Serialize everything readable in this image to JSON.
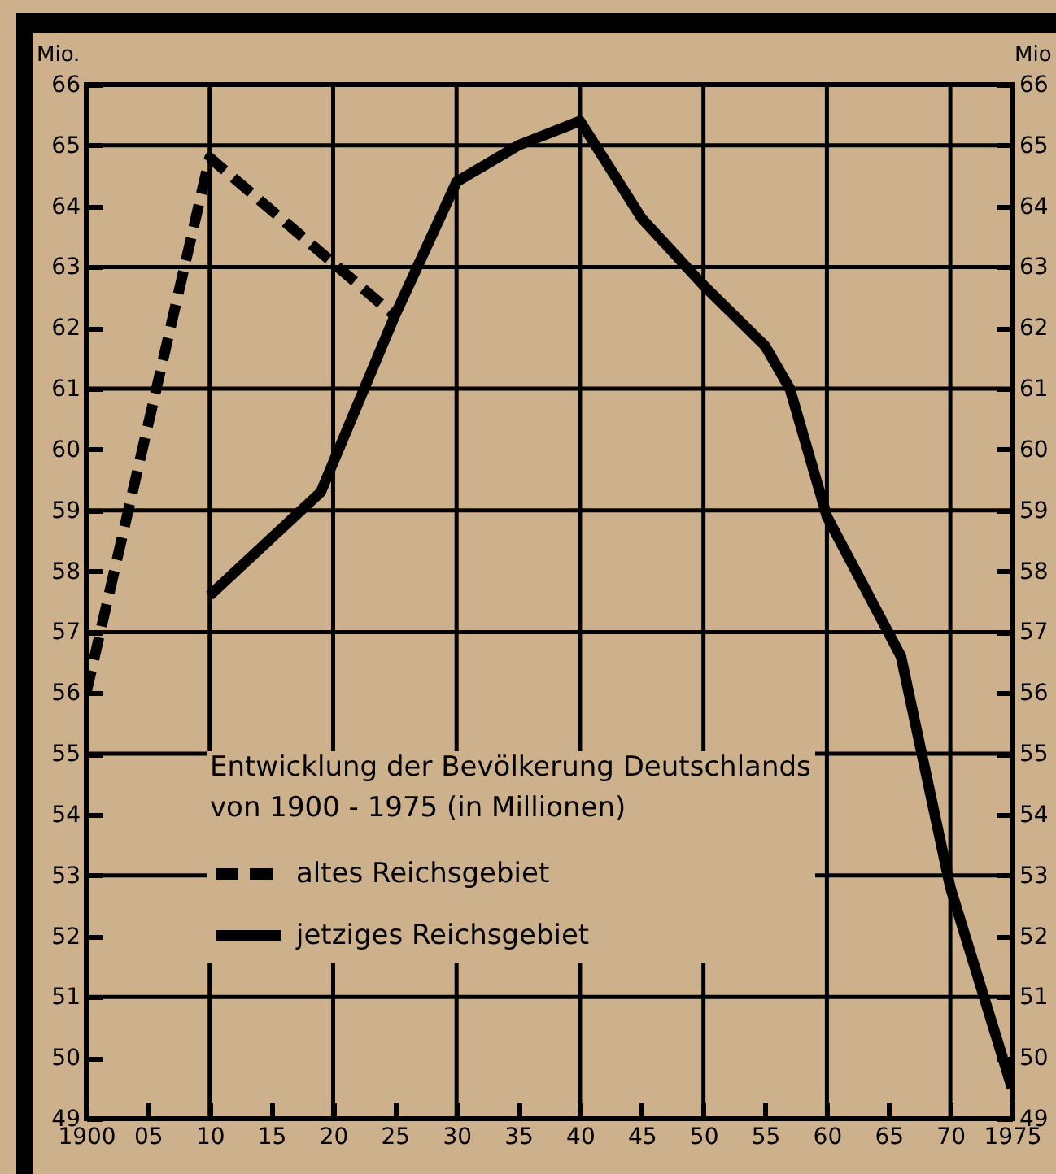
{
  "chart_data": {
    "type": "line",
    "title": "Entwicklung der Bevölkerung Deutschlands",
    "subtitle": "von 1900 - 1975 (in Millionen)",
    "ylabel": "Mio.",
    "y2label": "Mio",
    "series": [
      {
        "name": "altes Reichsgebiet",
        "color": "#000000",
        "line_style": "dashed",
        "x": [
          1900,
          1910,
          1925
        ],
        "values": [
          56.0,
          64.8,
          62.2
        ]
      },
      {
        "name": "jetziges Reichsgebiet",
        "color": "#000000",
        "line_style": "solid",
        "x": [
          1910,
          1919,
          1925,
          1930,
          1935,
          1940,
          1945,
          1950,
          1955,
          1957,
          1960,
          1966,
          1970,
          1975
        ],
        "values": [
          57.6,
          59.3,
          62.2,
          64.4,
          65.0,
          65.4,
          63.8,
          62.7,
          61.7,
          61.0,
          58.9,
          56.6,
          52.8,
          49.5
        ]
      }
    ],
    "xlim": [
      1900,
      1975
    ],
    "xticks": [
      1900,
      {
        "value": 1905,
        "label": "05"
      },
      {
        "value": 1910,
        "label": "10"
      },
      {
        "value": 1915,
        "label": "15"
      },
      {
        "value": 1920,
        "label": "20"
      },
      {
        "value": 1925,
        "label": "25"
      },
      {
        "value": 1930,
        "label": "30"
      },
      {
        "value": 1935,
        "label": "35"
      },
      {
        "value": 1940,
        "label": "40"
      },
      {
        "value": 1945,
        "label": "45"
      },
      {
        "value": 1950,
        "label": "50"
      },
      {
        "value": 1955,
        "label": "55"
      },
      {
        "value": 1960,
        "label": "60"
      },
      {
        "value": 1965,
        "label": "65"
      },
      {
        "value": 1970,
        "label": "70"
      },
      1975
    ],
    "ylim": [
      49,
      66
    ],
    "yticks": [
      49,
      50,
      51,
      52,
      53,
      54,
      55,
      56,
      57,
      58,
      59,
      60,
      61,
      62,
      63,
      64,
      65,
      66
    ],
    "y2lim": [
      49,
      66
    ],
    "y2ticks": [
      49,
      50,
      51,
      52,
      53,
      54,
      55,
      56,
      57,
      58,
      59,
      60,
      61,
      62,
      63,
      64,
      65,
      66
    ],
    "grid": true,
    "legend": "bottom left",
    "marker": "none"
  }
}
